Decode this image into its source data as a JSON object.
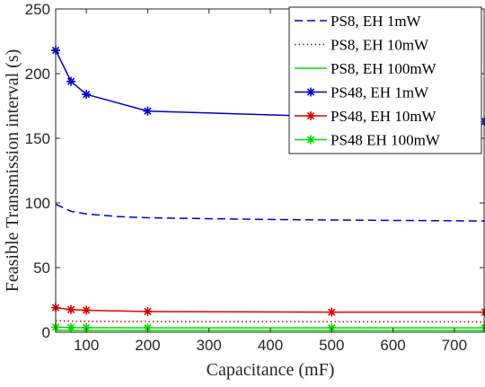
{
  "chart_data": {
    "type": "line",
    "xlabel": "Capacitance (mF)",
    "ylabel": "Feasible Transmission interval (s)",
    "xlim": [
      50,
      750
    ],
    "ylim": [
      0,
      250
    ],
    "xticks": [
      100,
      200,
      300,
      400,
      500,
      600,
      700
    ],
    "yticks": [
      0,
      50,
      100,
      150,
      200,
      250
    ],
    "grid": false,
    "legend_position": "top-right",
    "series": [
      {
        "name": "PS8, EH 1mW",
        "color": "#0000d0",
        "dash": "dashed",
        "marker": "none",
        "x": [
          50,
          75,
          100,
          150,
          200,
          300,
          400,
          500,
          600,
          700,
          750
        ],
        "y": [
          99,
          93.5,
          91.5,
          89.5,
          88.5,
          87.8,
          87.2,
          86.8,
          86.5,
          86.2,
          86
        ]
      },
      {
        "name": "PS8, EH 10mW",
        "color": "#d00000",
        "dash": "dotted",
        "marker": "none",
        "x": [
          50,
          75,
          100,
          200,
          500,
          750
        ],
        "y": [
          9,
          8.6,
          8.4,
          8.2,
          8.1,
          8.0
        ]
      },
      {
        "name": "PS8, EH 100mW",
        "color": "#00dd00",
        "dash": "solid",
        "marker": "none",
        "x": [
          50,
          100,
          200,
          500,
          750
        ],
        "y": [
          1.5,
          1.4,
          1.4,
          1.4,
          1.4
        ]
      },
      {
        "name": "PS48, EH 1mW",
        "color": "#0000d0",
        "dash": "solid",
        "marker": "star",
        "x": [
          50,
          75,
          100,
          200,
          750
        ],
        "y": [
          218,
          194,
          184,
          171,
          163
        ]
      },
      {
        "name": "PS48, EH 10mW",
        "color": "#e00000",
        "dash": "solid",
        "marker": "star",
        "x": [
          50,
          75,
          100,
          200,
          500,
          750
        ],
        "y": [
          19,
          17.5,
          17,
          16,
          15.5,
          15.5
        ]
      },
      {
        "name": "PS48 EH 100mW",
        "color": "#00dd00",
        "dash": "solid",
        "marker": "star",
        "x": [
          50,
          75,
          100,
          200,
          500,
          750
        ],
        "y": [
          4,
          3.6,
          3.5,
          3.4,
          3.4,
          3.4
        ]
      }
    ]
  }
}
